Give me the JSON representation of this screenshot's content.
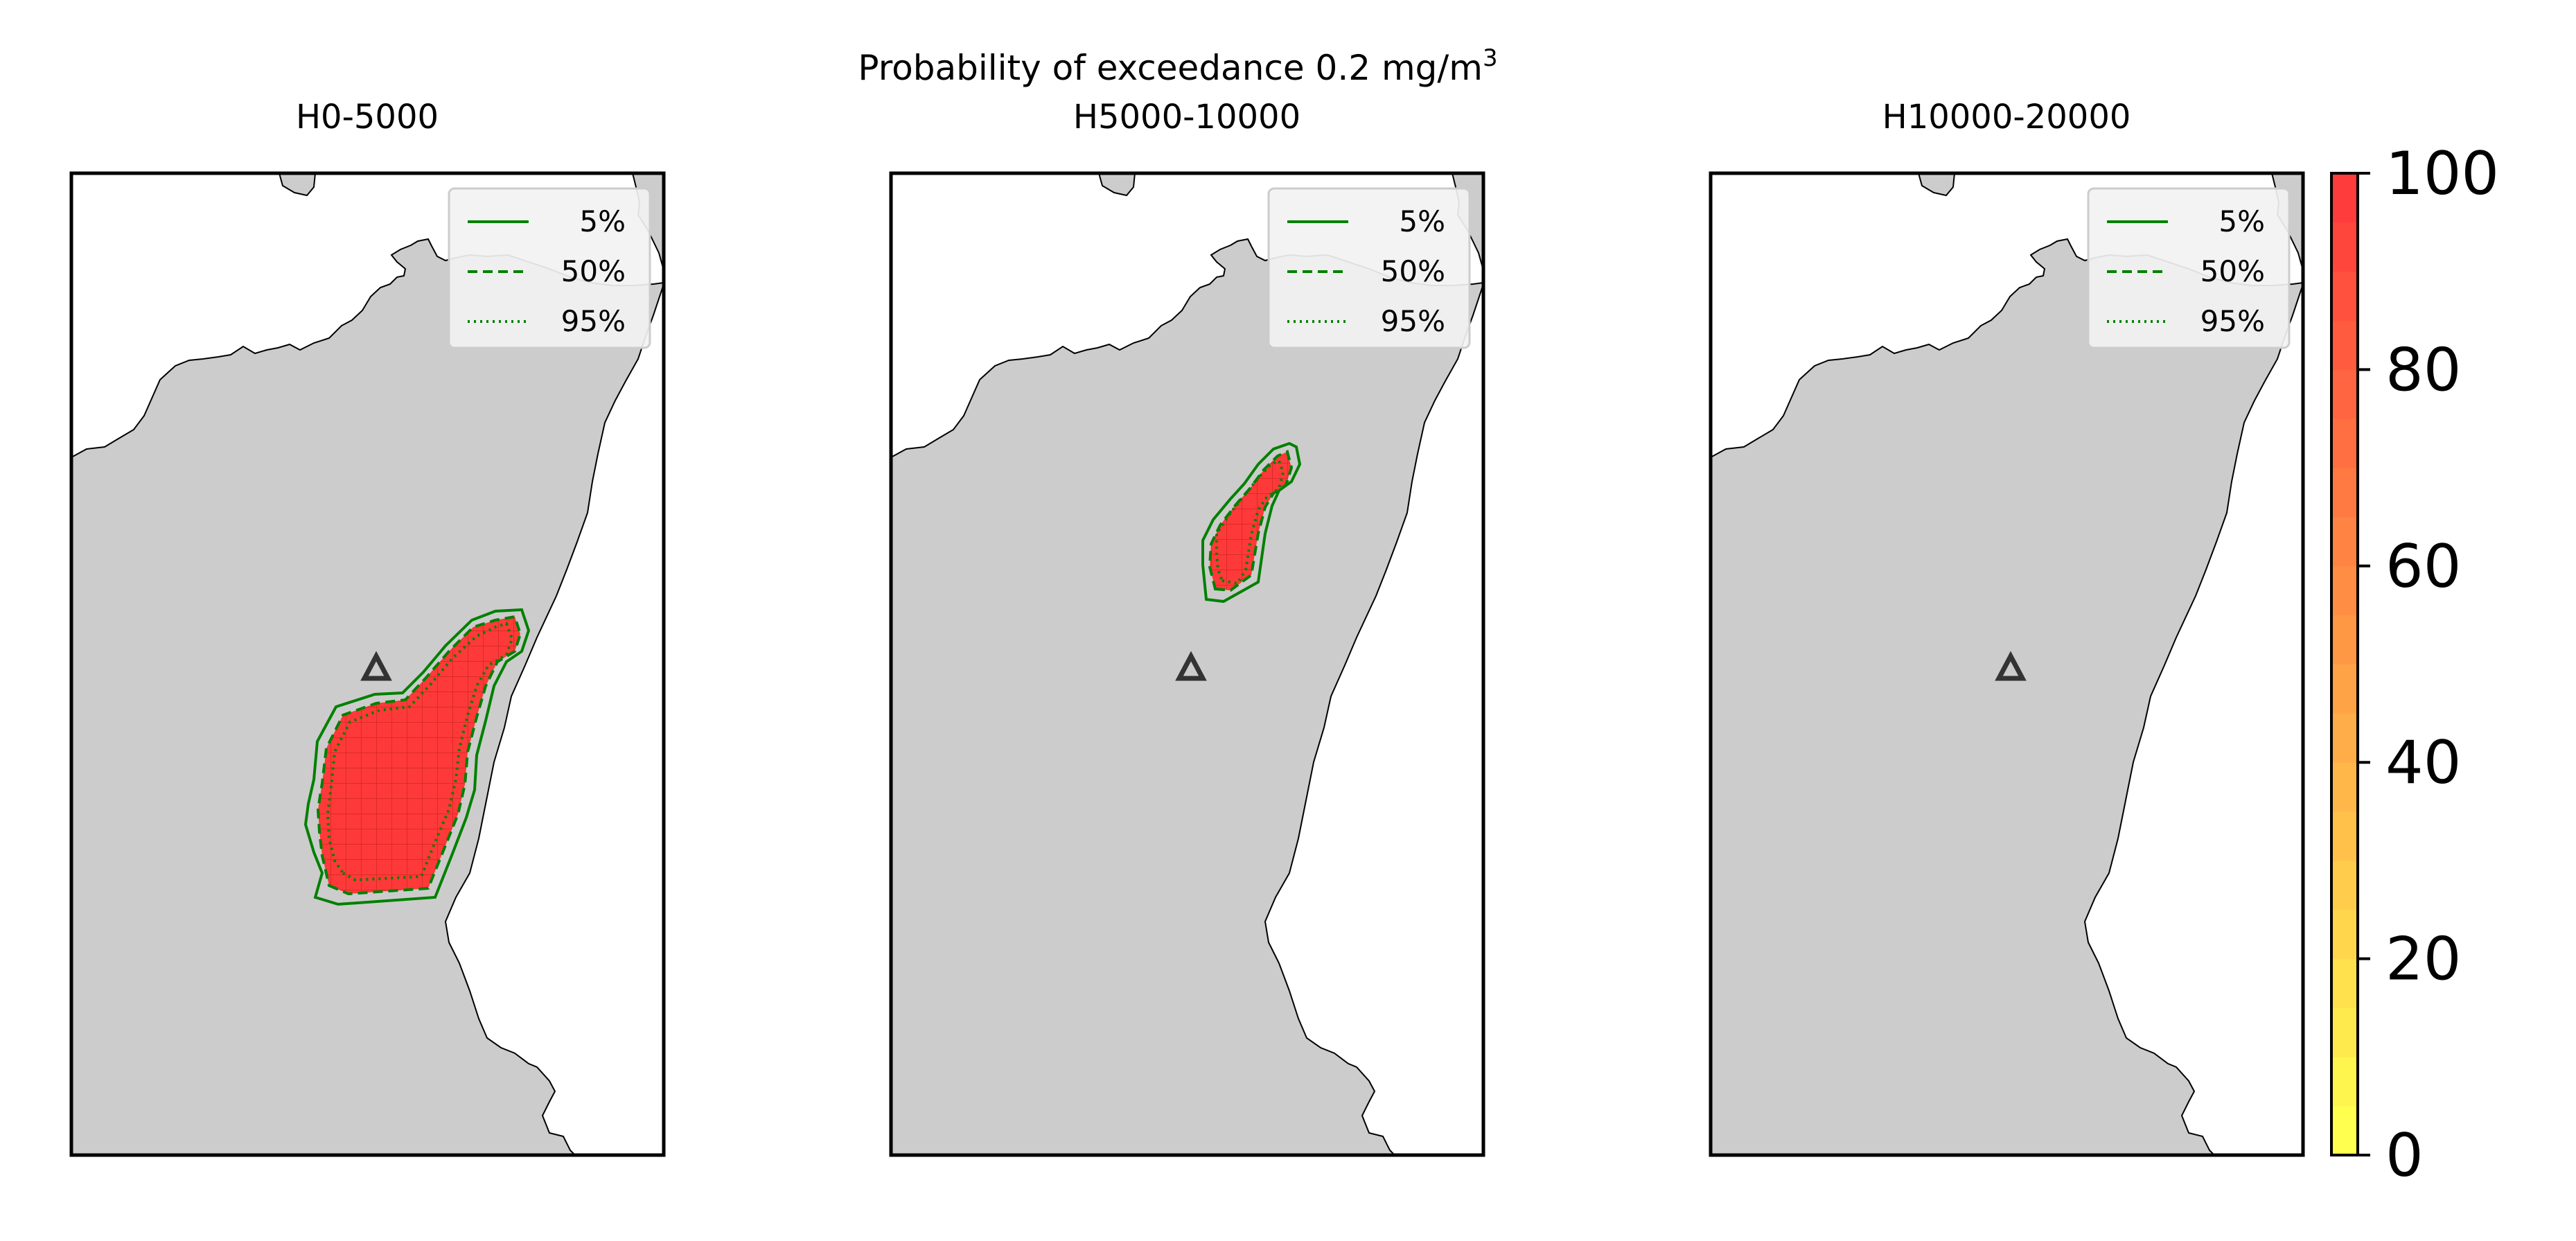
{
  "figure": {
    "suptitle_main": "Probability of exceedance 0.2 mg/m",
    "suptitle_sup": "3"
  },
  "colors": {
    "land": "#cccccc",
    "coast": "#000000",
    "contour": "#008000",
    "plume": "#ff3030",
    "vent": "#333333"
  },
  "chart_data": [
    {
      "type": "heatmap",
      "title": "H0-5000",
      "legend": {
        "placement": "top-right",
        "entries": [
          {
            "label": "5%",
            "style": "solid"
          },
          {
            "label": "50%",
            "style": "dashed"
          },
          {
            "label": "95%",
            "style": "dotted"
          }
        ]
      },
      "plume_present": true,
      "plume_value": 100
    },
    {
      "type": "heatmap",
      "title": "H5000-10000",
      "legend": {
        "placement": "top-right",
        "entries": [
          {
            "label": "5%",
            "style": "solid"
          },
          {
            "label": "50%",
            "style": "dashed"
          },
          {
            "label": "95%",
            "style": "dotted"
          }
        ]
      },
      "plume_present": true,
      "plume_value": 100
    },
    {
      "type": "heatmap",
      "title": "H10000-20000",
      "legend": {
        "placement": "top-right",
        "entries": [
          {
            "label": "5%",
            "style": "solid"
          },
          {
            "label": "50%",
            "style": "dashed"
          },
          {
            "label": "95%",
            "style": "dotted"
          }
        ]
      },
      "plume_present": false,
      "plume_value": 0
    }
  ],
  "colorbar": {
    "range": [
      0,
      100
    ],
    "ticks": [
      "0",
      "20",
      "40",
      "60",
      "80",
      "100"
    ],
    "levels": 20,
    "color_low": "#ffff50",
    "color_high": "#ff3c3c"
  }
}
